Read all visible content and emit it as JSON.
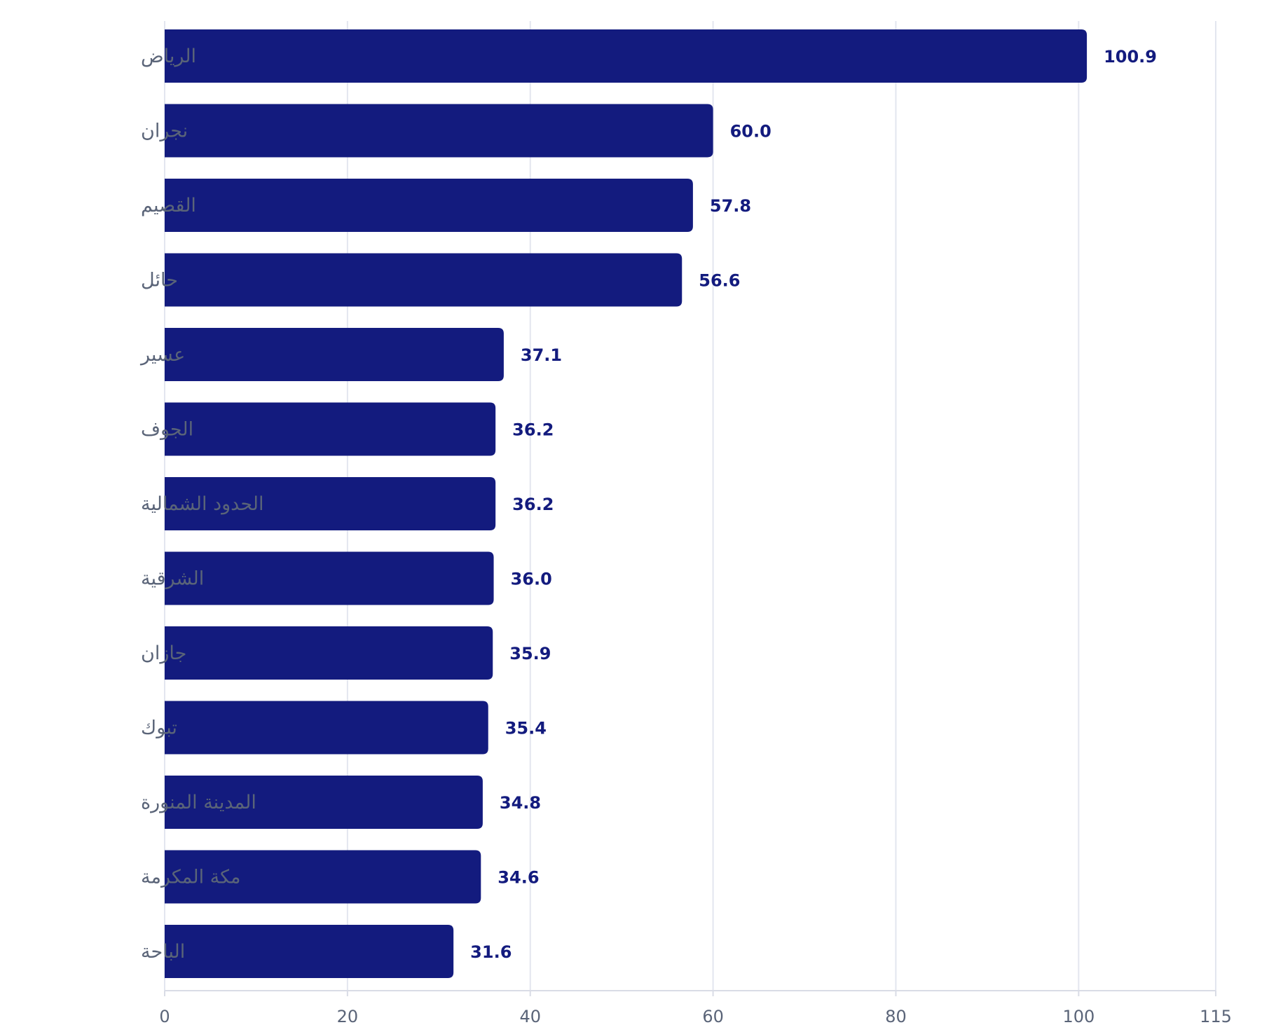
{
  "chart_data": {
    "type": "bar",
    "orientation": "horizontal",
    "categories": [
      "الرياض",
      "نجران",
      "القصيم",
      "حائل",
      "عسير",
      "الجوف",
      "الحدود الشمالية",
      "الشرقية",
      "جازان",
      "تبوك",
      "المدينة المنورة",
      "مكة المكرمة",
      "الباحة"
    ],
    "values": [
      100.9,
      60.0,
      57.8,
      56.6,
      37.1,
      36.2,
      36.2,
      36.0,
      35.9,
      35.4,
      34.8,
      34.6,
      31.6
    ],
    "value_labels": [
      "100.9",
      "60.0",
      "57.8",
      "56.6",
      "37.1",
      "36.2",
      "36.2",
      "36.0",
      "35.9",
      "35.4",
      "34.8",
      "34.6",
      "31.6"
    ],
    "xlim": [
      0,
      115
    ],
    "x_ticks": [
      0,
      20,
      40,
      60,
      80,
      100,
      115
    ],
    "x_tick_labels": [
      "0",
      "20",
      "40",
      "60",
      "80",
      "100",
      "115"
    ],
    "title": "",
    "xlabel": "",
    "ylabel": "",
    "grid": true,
    "legend": "none",
    "colors": {
      "bar": "#131b7e",
      "value_label": "#131b7e",
      "category_label": "#5a6478",
      "grid": "#e3e6ef"
    }
  }
}
